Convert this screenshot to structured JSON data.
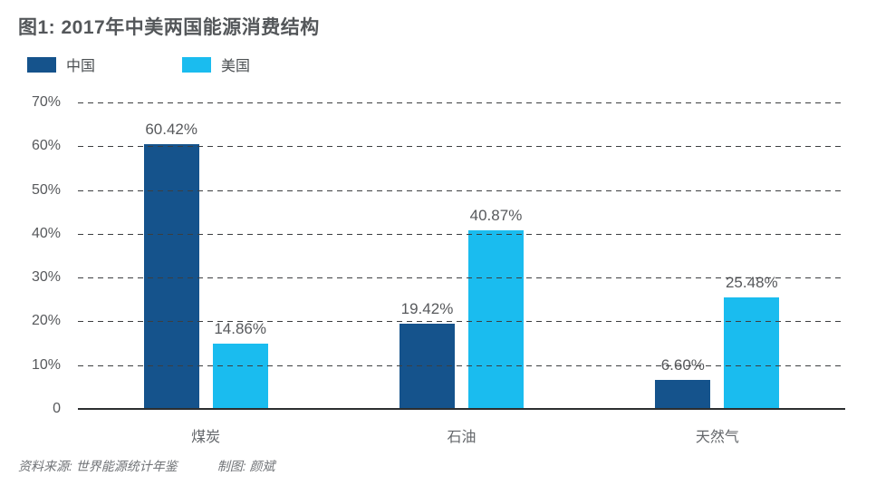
{
  "footer": {
    "source": "资料来源: 世界能源统计年鉴",
    "credit": "制图: 颜斌"
  },
  "chart_data": {
    "type": "bar",
    "title": "图1: 2017年中美两国能源消费结构",
    "categories": [
      "煤炭",
      "石油",
      "天然气"
    ],
    "series": [
      {
        "name": "中国",
        "key": "china",
        "color": "#15538C",
        "values": [
          60.42,
          19.42,
          6.6
        ],
        "labels": [
          "60.42%",
          "19.42%",
          "6.60%"
        ]
      },
      {
        "name": "美国",
        "key": "usa",
        "color": "#1ABCEF",
        "values": [
          14.86,
          40.87,
          25.48
        ],
        "labels": [
          "14.86%",
          "40.87%",
          "25.48%"
        ]
      }
    ],
    "xlabel": "",
    "ylabel": "",
    "ylim": [
      0,
      70
    ],
    "yticks": [
      "70%",
      "60%",
      "50%",
      "40%",
      "30%",
      "20%",
      "10%",
      "0"
    ],
    "grid": "horizontal-dashed",
    "baseline": "solid",
    "legend_position": "top-left",
    "value_labels": "above-bars"
  }
}
